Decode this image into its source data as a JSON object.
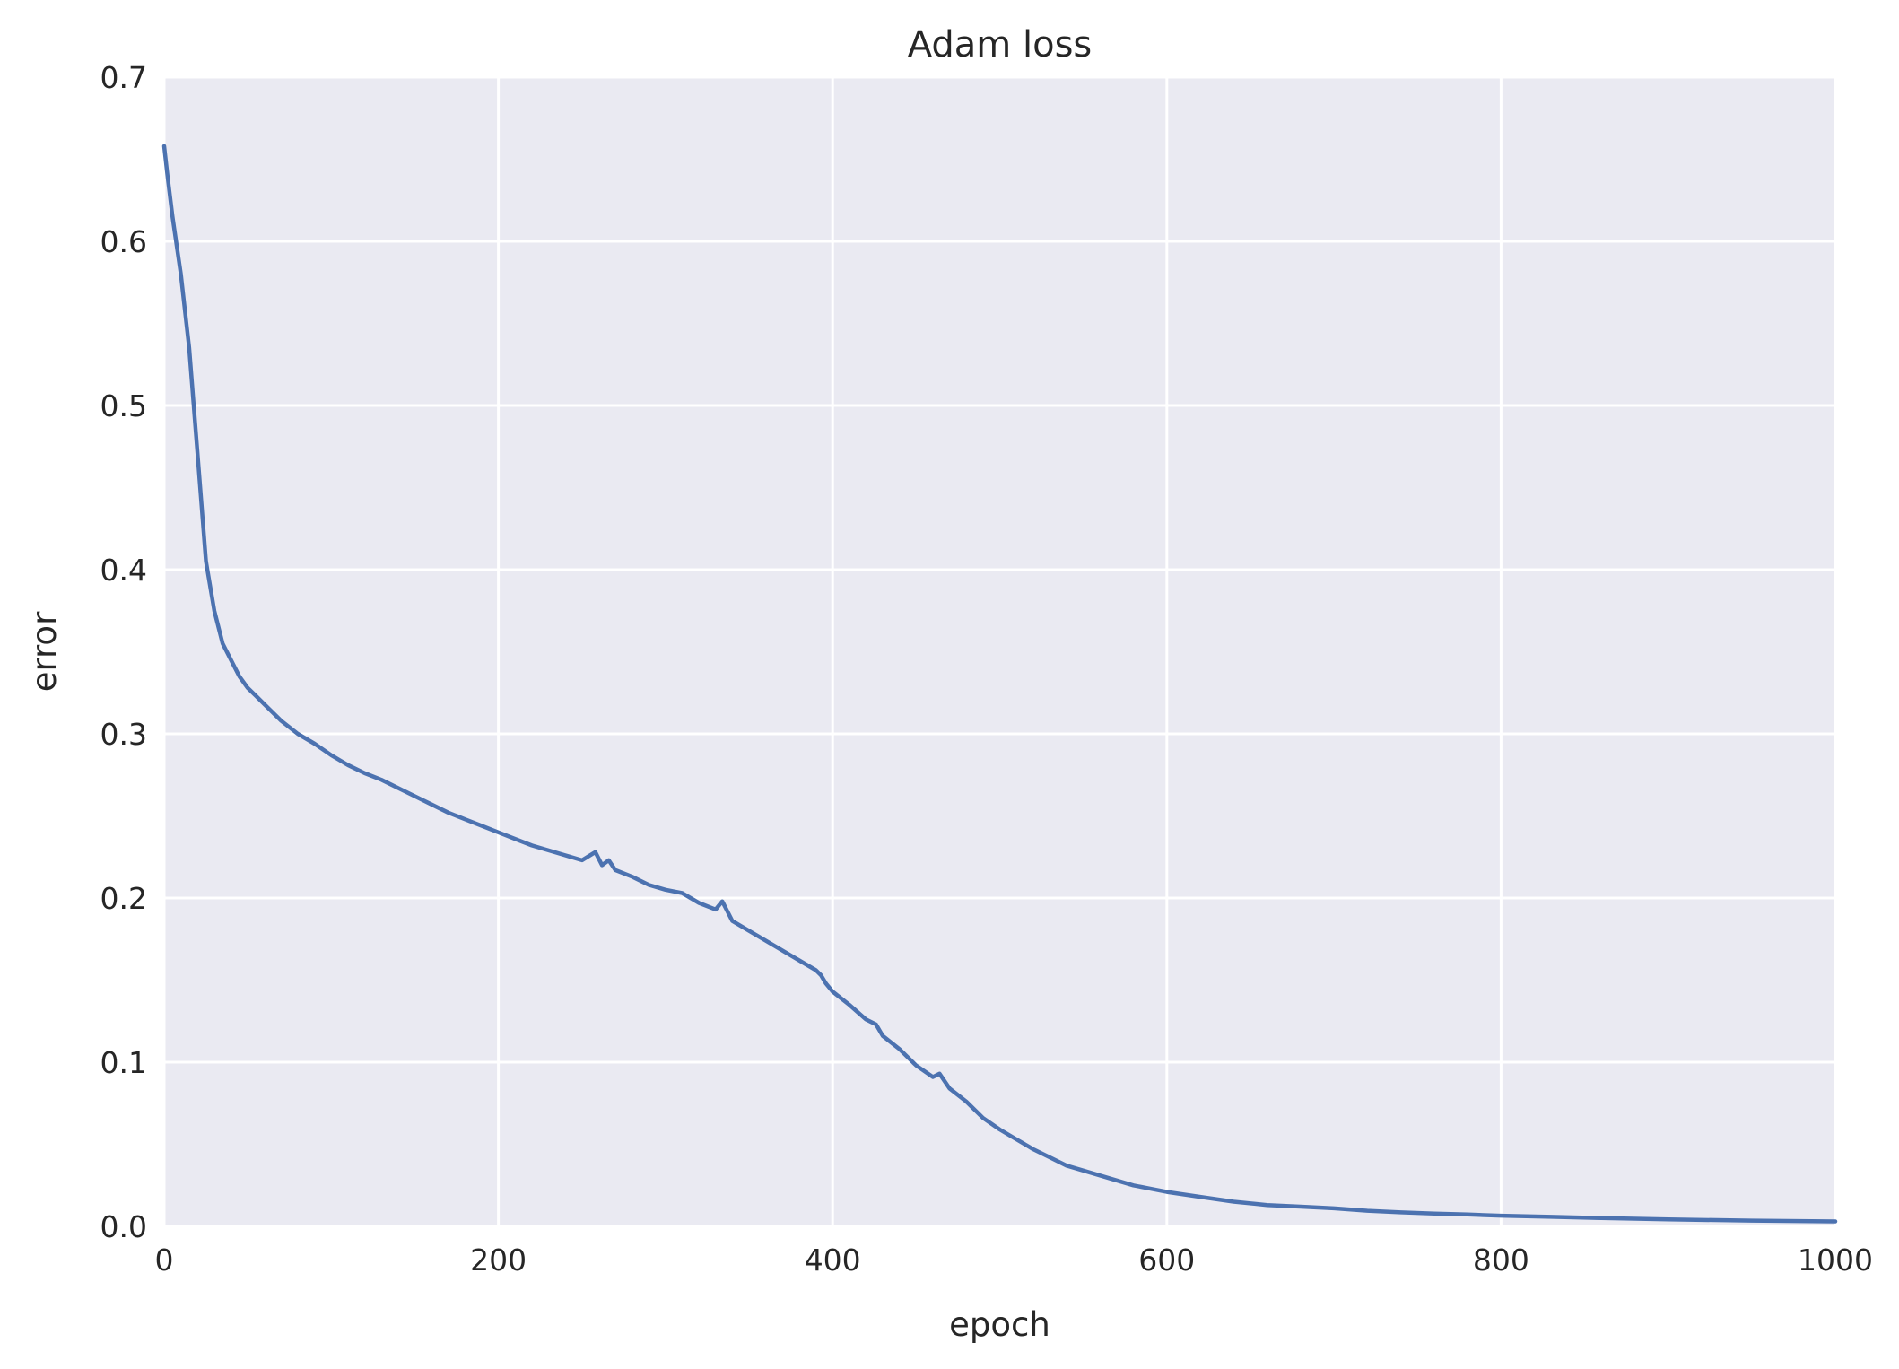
{
  "chart_data": {
    "type": "line",
    "title": "Adam loss",
    "xlabel": "epoch",
    "ylabel": "error",
    "xlim": [
      0,
      1000
    ],
    "ylim": [
      0,
      0.7
    ],
    "xticks": [
      0,
      200,
      400,
      600,
      800,
      1000
    ],
    "xtick_labels": [
      "0",
      "200",
      "400",
      "600",
      "800",
      "1000"
    ],
    "yticks": [
      0,
      0.1,
      0.2,
      0.3,
      0.4,
      0.5,
      0.6,
      0.7
    ],
    "ytick_labels": [
      "0.0",
      "0.1",
      "0.2",
      "0.3",
      "0.4",
      "0.5",
      "0.6",
      "0.7"
    ],
    "grid": true,
    "background": "#EAEAF2",
    "grid_color": "#FFFFFF",
    "series": [
      {
        "color": "#4C72B0",
        "x": [
          0,
          2,
          5,
          10,
          15,
          20,
          25,
          30,
          35,
          40,
          45,
          50,
          55,
          60,
          70,
          80,
          90,
          100,
          110,
          120,
          130,
          140,
          150,
          160,
          170,
          180,
          190,
          200,
          210,
          220,
          230,
          240,
          250,
          258,
          262,
          266,
          270,
          280,
          290,
          300,
          310,
          320,
          330,
          334,
          340,
          350,
          360,
          370,
          380,
          390,
          393,
          396,
          400,
          410,
          420,
          426,
          430,
          440,
          450,
          460,
          464,
          470,
          480,
          490,
          500,
          510,
          520,
          530,
          540,
          550,
          560,
          570,
          580,
          590,
          600,
          620,
          640,
          660,
          680,
          700,
          720,
          740,
          760,
          780,
          800,
          830,
          860,
          900,
          950,
          1000
        ],
        "values": [
          0.658,
          0.64,
          0.615,
          0.58,
          0.535,
          0.47,
          0.405,
          0.375,
          0.355,
          0.345,
          0.335,
          0.328,
          0.323,
          0.318,
          0.308,
          0.3,
          0.294,
          0.287,
          0.281,
          0.276,
          0.272,
          0.267,
          0.262,
          0.257,
          0.252,
          0.248,
          0.244,
          0.24,
          0.236,
          0.232,
          0.229,
          0.226,
          0.223,
          0.228,
          0.22,
          0.223,
          0.217,
          0.213,
          0.208,
          0.205,
          0.203,
          0.197,
          0.193,
          0.198,
          0.186,
          0.18,
          0.174,
          0.168,
          0.162,
          0.156,
          0.153,
          0.148,
          0.143,
          0.135,
          0.126,
          0.123,
          0.116,
          0.108,
          0.098,
          0.091,
          0.093,
          0.084,
          0.076,
          0.066,
          0.059,
          0.053,
          0.047,
          0.042,
          0.037,
          0.034,
          0.031,
          0.028,
          0.025,
          0.023,
          0.021,
          0.018,
          0.015,
          0.013,
          0.012,
          0.011,
          0.0095,
          0.0085,
          0.0078,
          0.0072,
          0.0065,
          0.0058,
          0.005,
          0.0042,
          0.0035,
          0.003
        ]
      }
    ]
  }
}
